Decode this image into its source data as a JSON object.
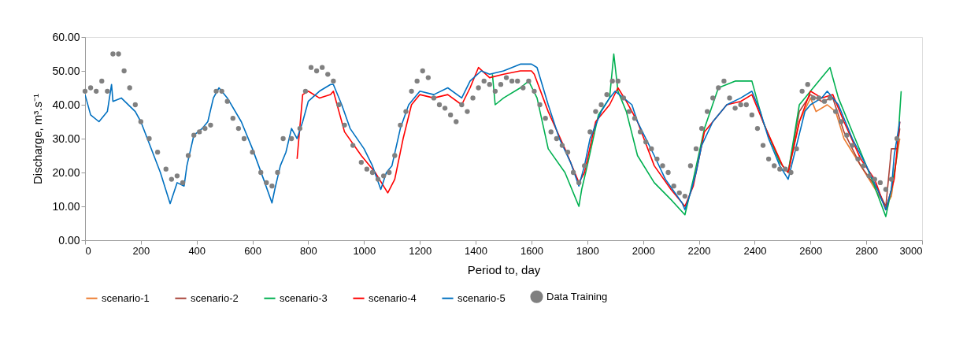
{
  "chart_data": {
    "type": "line",
    "xlabel": "Period to,  day",
    "ylabel": "Discharge, m³.s⁻¹",
    "xlim": [
      0,
      3000
    ],
    "xticks": [
      0,
      200,
      400,
      600,
      800,
      1000,
      1200,
      1400,
      1600,
      1800,
      2000,
      2200,
      2400,
      2600,
      2800,
      3000
    ],
    "ylim": [
      0,
      60
    ],
    "yticks": [
      {
        "value": 0,
        "label": "0.00"
      },
      {
        "value": 10,
        "label": "10.00"
      },
      {
        "value": 20,
        "label": "20.00"
      },
      {
        "value": 30,
        "label": "30.00"
      },
      {
        "value": 40,
        "label": "40.00"
      },
      {
        "value": 50,
        "label": "50.00"
      },
      {
        "value": 60,
        "label": "60.00"
      }
    ],
    "grid": false,
    "legend": "bottom",
    "line_style": "solid",
    "series": [
      {
        "name": "scenario-1",
        "color": "#ed7d31",
        "type": "line",
        "x": [
          2520,
          2560,
          2600,
          2620,
          2660,
          2690,
          2720,
          2780,
          2840,
          2870,
          2890,
          2910,
          2920
        ],
        "values": [
          20,
          35,
          42,
          38,
          40,
          38,
          30,
          22,
          14,
          10,
          13,
          25,
          30
        ]
      },
      {
        "name": "scenario-2",
        "color": "#a9443a",
        "type": "line",
        "x": [
          2520,
          2560,
          2600,
          2640,
          2680,
          2720,
          2780,
          2840,
          2870,
          2890,
          2910,
          2920
        ],
        "values": [
          20,
          38,
          43,
          41,
          42,
          32,
          22,
          15,
          10,
          27,
          27,
          33
        ]
      },
      {
        "name": "scenario-3",
        "color": "#00b050",
        "type": "line",
        "x": [
          1460,
          1470,
          1500,
          1560,
          1590,
          1620,
          1660,
          1720,
          1770,
          1780,
          1800,
          1840,
          1880,
          1895,
          1910,
          1940,
          1980,
          2040,
          2100,
          2150,
          2180,
          2220,
          2270,
          2330,
          2390,
          2430,
          2490,
          2520,
          2560,
          2600,
          2640,
          2670,
          2700,
          2760,
          2820,
          2870,
          2890,
          2910,
          2925
        ],
        "values": [
          49,
          40,
          42,
          45,
          47,
          42,
          27,
          20,
          10,
          15,
          22,
          37,
          42,
          55,
          44,
          38,
          25,
          17,
          12,
          7.5,
          18,
          33,
          45,
          47,
          47,
          35,
          23,
          20,
          40,
          44,
          48,
          51,
          42,
          30,
          18,
          7,
          15,
          25,
          44
        ]
      },
      {
        "name": "scenario-4",
        "color": "#ff0000",
        "type": "line",
        "x": [
          760,
          780,
          800,
          840,
          880,
          890,
          930,
          990,
          1040,
          1085,
          1110,
          1140,
          1170,
          1200,
          1250,
          1300,
          1350,
          1380,
          1410,
          1450,
          1500,
          1560,
          1600,
          1610,
          1660,
          1720,
          1770,
          1790,
          1830,
          1880,
          1910,
          1940,
          1980,
          2040,
          2100,
          2150,
          2180,
          2220,
          2300,
          2350,
          2390,
          2440,
          2500,
          2520,
          2560,
          2600,
          2640,
          2680,
          2720,
          2780,
          2830,
          2870,
          2900,
          2920
        ],
        "values": [
          24,
          43,
          44,
          42,
          43,
          44,
          32,
          25,
          20,
          14,
          18,
          30,
          40,
          43,
          42,
          43,
          40,
          45,
          51,
          48,
          49,
          50,
          50,
          49,
          38,
          27,
          17,
          20,
          35,
          40,
          45,
          41,
          35,
          22,
          15,
          10,
          16,
          32,
          40,
          41,
          43,
          33,
          22,
          20,
          35,
          44,
          42,
          43,
          35,
          24,
          18,
          9,
          18,
          35
        ]
      },
      {
        "name": "scenario-5",
        "color": "#0070c0",
        "type": "line",
        "x": [
          0,
          20,
          50,
          80,
          95,
          100,
          130,
          180,
          200,
          270,
          305,
          330,
          355,
          365,
          390,
          420,
          440,
          460,
          480,
          510,
          560,
          600,
          640,
          670,
          680,
          700,
          720,
          740,
          760,
          780,
          800,
          840,
          880,
          890,
          920,
          950,
          1000,
          1030,
          1060,
          1080,
          1100,
          1130,
          1160,
          1200,
          1250,
          1300,
          1350,
          1380,
          1420,
          1450,
          1500,
          1560,
          1600,
          1620,
          1660,
          1700,
          1740,
          1770,
          1790,
          1810,
          1850,
          1880,
          1900,
          1930,
          1960,
          1980,
          2040,
          2080,
          2140,
          2150,
          2170,
          2190,
          2210,
          2250,
          2300,
          2350,
          2390,
          2420,
          2450,
          2490,
          2520,
          2550,
          2580,
          2600,
          2640,
          2660,
          2700,
          2750,
          2800,
          2840,
          2870,
          2890,
          2900,
          2920
        ],
        "values": [
          43,
          37,
          35,
          38,
          46,
          41,
          42,
          38,
          35,
          20,
          10.8,
          17,
          16,
          22,
          31,
          33,
          35,
          42,
          45,
          42,
          35,
          27,
          18,
          11,
          15,
          22,
          26,
          33,
          30,
          35,
          41,
          44,
          46,
          46,
          40,
          33,
          27,
          22,
          15,
          20,
          22,
          33,
          40,
          44,
          43,
          45,
          42,
          47,
          50,
          49,
          50,
          52,
          52,
          51,
          40,
          30,
          23,
          16,
          22,
          30,
          38,
          42,
          44,
          42,
          40,
          35,
          25,
          18,
          11,
          9,
          14,
          20,
          28,
          35,
          40,
          42,
          44,
          38,
          30,
          22,
          18,
          28,
          38,
          40,
          42,
          44,
          40,
          30,
          22,
          15,
          9,
          15,
          25,
          35
        ]
      },
      {
        "name": "Data Training",
        "color": "#808080",
        "type": "scatter",
        "marker": "circle",
        "x": [
          0,
          20,
          40,
          60,
          80,
          100,
          120,
          140,
          160,
          180,
          200,
          230,
          260,
          290,
          310,
          330,
          350,
          370,
          390,
          410,
          430,
          450,
          470,
          490,
          510,
          530,
          550,
          570,
          600,
          630,
          650,
          670,
          690,
          710,
          740,
          770,
          790,
          810,
          830,
          850,
          870,
          890,
          910,
          930,
          960,
          990,
          1010,
          1030,
          1050,
          1070,
          1090,
          1110,
          1130,
          1150,
          1170,
          1190,
          1210,
          1230,
          1250,
          1270,
          1290,
          1310,
          1330,
          1350,
          1370,
          1390,
          1410,
          1430,
          1450,
          1470,
          1490,
          1510,
          1530,
          1550,
          1570,
          1590,
          1610,
          1630,
          1650,
          1670,
          1690,
          1710,
          1730,
          1750,
          1770,
          1790,
          1810,
          1830,
          1850,
          1870,
          1890,
          1910,
          1930,
          1950,
          1970,
          1990,
          2010,
          2030,
          2050,
          2070,
          2090,
          2110,
          2130,
          2150,
          2170,
          2190,
          2210,
          2230,
          2250,
          2270,
          2290,
          2310,
          2330,
          2350,
          2370,
          2390,
          2410,
          2430,
          2450,
          2470,
          2490,
          2510,
          2530,
          2550,
          2570,
          2590,
          2610,
          2630,
          2650,
          2670,
          2690,
          2710,
          2730,
          2750,
          2770,
          2790,
          2810,
          2830,
          2850,
          2870,
          2890,
          2910
        ],
        "values": [
          44,
          45,
          44,
          47,
          44,
          55,
          55,
          50,
          45,
          40,
          35,
          30,
          26,
          21,
          18,
          19,
          17,
          25,
          31,
          32,
          33,
          34,
          44,
          44,
          41,
          36,
          33,
          30,
          26,
          20,
          17,
          16,
          20,
          30,
          30,
          33,
          44,
          51,
          50,
          51,
          49,
          47,
          40,
          34,
          28,
          23,
          21,
          20,
          18,
          19,
          20,
          25,
          34,
          38,
          44,
          47,
          50,
          48,
          42,
          40,
          39,
          37,
          35,
          40,
          38,
          42,
          45,
          47,
          46,
          44,
          46,
          48,
          47,
          47,
          45,
          47,
          44,
          40,
          36,
          32,
          30,
          28,
          26,
          20,
          17,
          22,
          32,
          38,
          40,
          43,
          47,
          47,
          42,
          38,
          36,
          32,
          29,
          27,
          24,
          22,
          20,
          16,
          14,
          13,
          22,
          27,
          33,
          38,
          42,
          45,
          47,
          42,
          39,
          40,
          40,
          37,
          33,
          28,
          24,
          22,
          21,
          21,
          20,
          27,
          44,
          46,
          42,
          42,
          41,
          42,
          38,
          35,
          31,
          28,
          24,
          22,
          19,
          18,
          17,
          15,
          18,
          30
        ]
      }
    ]
  }
}
